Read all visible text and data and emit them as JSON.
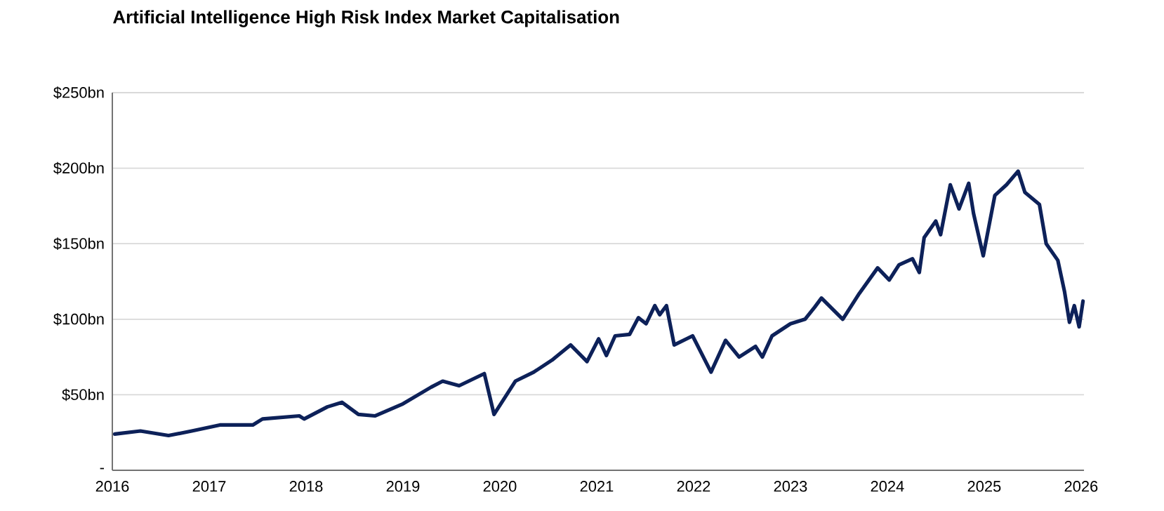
{
  "chart_data": {
    "type": "line",
    "title": "Artificial Intelligence High Risk Index Market Capitalisation",
    "x": [
      2016.025,
      2016.29,
      2016.58,
      2016.82,
      2017.11,
      2017.45,
      2017.55,
      2017.93,
      2017.98,
      2018.22,
      2018.37,
      2018.54,
      2018.71,
      2019.0,
      2019.29,
      2019.41,
      2019.58,
      2019.84,
      2019.94,
      2020.16,
      2020.35,
      2020.54,
      2020.73,
      2020.9,
      2021.02,
      2021.1,
      2021.19,
      2021.34,
      2021.43,
      2021.51,
      2021.6,
      2021.65,
      2021.72,
      2021.8,
      2021.99,
      2022.18,
      2022.33,
      2022.47,
      2022.64,
      2022.71,
      2022.81,
      2023.0,
      2023.15,
      2023.25,
      2023.32,
      2023.54,
      2023.71,
      2023.9,
      2024.02,
      2024.12,
      2024.26,
      2024.33,
      2024.38,
      2024.5,
      2024.55,
      2024.65,
      2024.74,
      2024.84,
      2024.89,
      2024.99,
      2025.11,
      2025.23,
      2025.35,
      2025.42,
      2025.57,
      2025.64,
      2025.76,
      2025.83,
      2025.88,
      2025.93,
      2025.98,
      2026.02
    ],
    "series": [
      {
        "color": "#0d2159",
        "values": [
          24,
          26,
          23,
          26,
          30,
          30,
          34,
          36,
          34,
          42,
          45,
          37,
          36,
          44,
          55,
          59,
          56,
          64,
          37,
          59,
          65,
          73,
          83,
          72,
          87,
          76,
          89,
          90,
          101,
          97,
          109,
          103,
          109,
          83,
          89,
          65,
          86,
          75,
          82,
          75,
          89,
          97,
          100,
          108,
          114,
          100,
          117,
          134,
          126,
          136,
          140,
          131,
          154,
          165,
          156,
          189,
          173,
          190,
          170,
          142,
          182,
          189,
          198,
          184,
          176,
          150,
          139,
          118,
          98,
          109,
          95,
          112
        ]
      }
    ],
    "xlim": [
      2016,
      2026.03
    ],
    "ylim": [
      0,
      250
    ],
    "xticks": [
      2016,
      2017,
      2018,
      2019,
      2020,
      2021,
      2022,
      2023,
      2024,
      2025,
      2026
    ],
    "yticks": [
      {
        "value": 0,
        "label": "-"
      },
      {
        "value": 50,
        "label": "$50bn"
      },
      {
        "value": 100,
        "label": "$100bn"
      },
      {
        "value": 150,
        "label": "$150bn"
      },
      {
        "value": 200,
        "label": "$200bn"
      },
      {
        "value": 250,
        "label": "$250bn"
      }
    ],
    "grid": "y",
    "marker": "none",
    "line_style": "solid"
  }
}
